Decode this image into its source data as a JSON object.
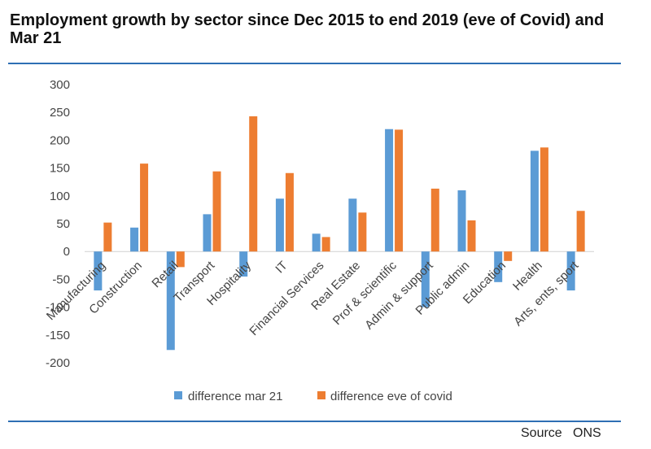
{
  "title": "Employment growth by sector since Dec 2015 to end 2019 (eve of Covid) and Mar 21",
  "source": "Source   ONS",
  "colors": {
    "series1": "#5b9bd5",
    "series2": "#ed7d31",
    "rule": "#2e6fb4"
  },
  "chart_data": {
    "type": "bar",
    "title": "Employment growth by sector since Dec 2015 to end 2019 (eve of Covid) and Mar 21",
    "xlabel": "",
    "ylabel": "",
    "ylim": [
      -200,
      300
    ],
    "yticks": [
      "300",
      "250",
      "200",
      "150",
      "100",
      "50",
      "0",
      "-50",
      "-100",
      "-150",
      "-200"
    ],
    "grid": false,
    "legend": "bottom",
    "categories": [
      "Manufacturing",
      "Construction",
      "Retail",
      "Transport",
      "Hospitality",
      "IT",
      "Financial Services",
      "Real Estate",
      "Prof & scientific",
      "Admin & support",
      "Public admin",
      "Education",
      "Health",
      "Arts, ents, sport"
    ],
    "series": [
      {
        "name": "difference mar 21",
        "values": [
          -70,
          43,
          -177,
          67,
          -45,
          95,
          32,
          95,
          220,
          -100,
          110,
          -55,
          181,
          -70
        ]
      },
      {
        "name": "difference eve of covid",
        "values": [
          52,
          158,
          -28,
          144,
          243,
          141,
          26,
          70,
          219,
          113,
          56,
          -17,
          187,
          73
        ]
      }
    ]
  }
}
